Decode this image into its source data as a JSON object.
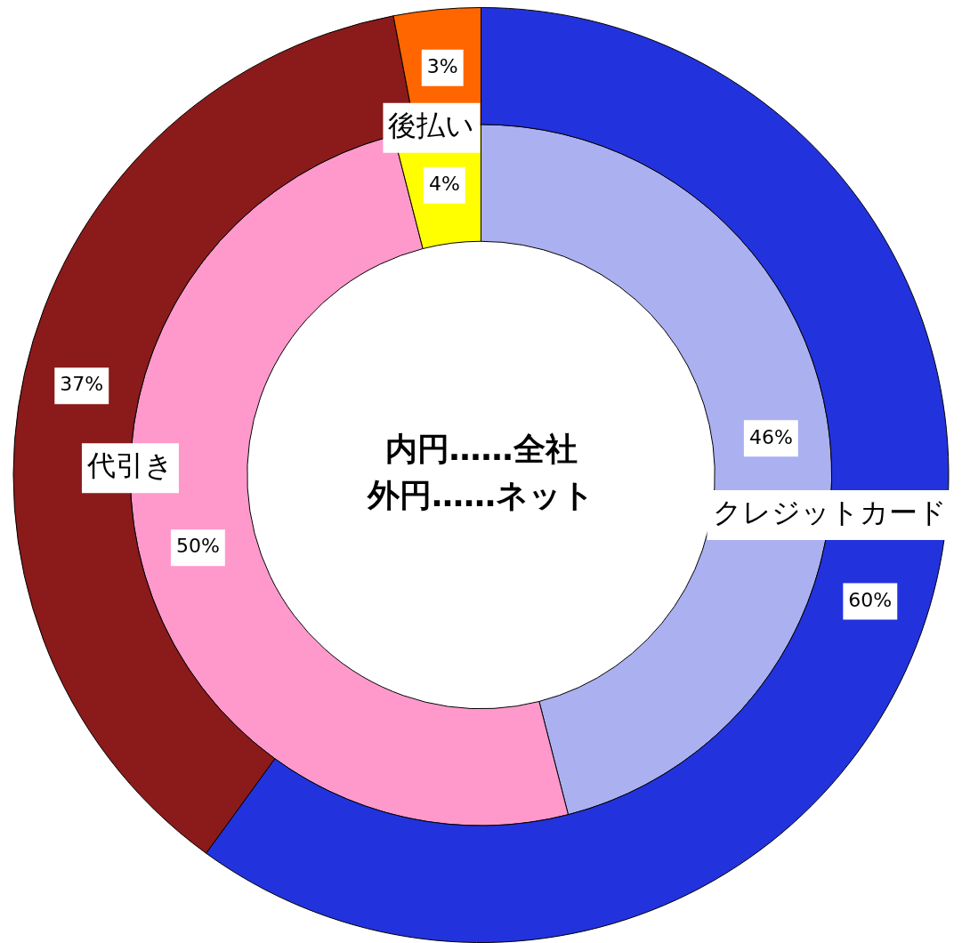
{
  "chart_data": {
    "type": "donut",
    "categories": [
      "クレジットカード",
      "代引き",
      "後払い"
    ],
    "series": [
      {
        "values": [
          60,
          37,
          3
        ],
        "colors": [
          "#2233dd",
          "#8b1a1a",
          "#ff6600"
        ],
        "value_labels": [
          "60%",
          "37%",
          "3%"
        ]
      },
      {
        "values": [
          46,
          50,
          4
        ],
        "colors": [
          "#aab0f0",
          "#ff99cc",
          "#ffff00"
        ],
        "value_labels": [
          "46%",
          "50%",
          "4%"
        ]
      }
    ],
    "annotations": [
      "内円……全社",
      "外円……ネット"
    ],
    "legend": false
  }
}
